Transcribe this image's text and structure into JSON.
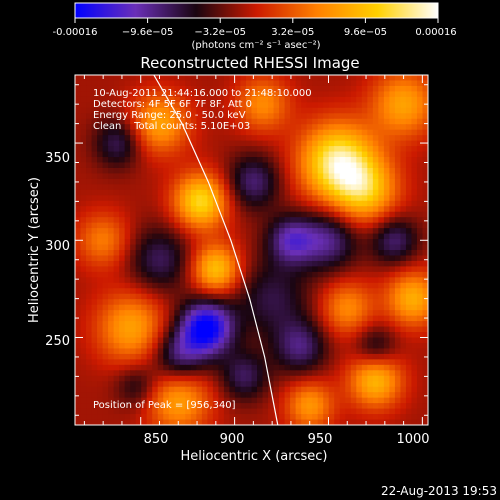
{
  "chart_data": {
    "type": "heatmap",
    "title": "Reconstructed RHESSI Image",
    "xlabel": "Heliocentric X (arcsec)",
    "ylabel": "Heliocentric Y (arcsec)",
    "xlim": [
      815,
      1003
    ],
    "ylim": [
      205,
      385
    ],
    "x_ticks": [
      850,
      900,
      950,
      1000
    ],
    "y_ticks": [
      250,
      300,
      350
    ],
    "colorbar": {
      "range": [
        -0.00016,
        0.00016
      ],
      "tick_values": [
        -0.00016,
        -9.6e-05,
        -3.2e-05,
        3.2e-05,
        9.6e-05,
        0.00016
      ],
      "tick_labels": [
        "-0.00016",
        "−9.6e−05",
        "−3.2e−05",
        "3.2e−05",
        "9.6e−05",
        "0.00016"
      ],
      "units": "(photons cm⁻² s⁻¹ asec⁻²)",
      "colors": [
        "#0000ff",
        "#6a2fb8",
        "#1a0510",
        "#cc1a00",
        "#ff8000",
        "#ffd000",
        "#ffffff"
      ]
    },
    "annotations": [
      "10-Aug-2011 21:44:16.000 to 21:48:10.000",
      "Detectors: 4F 5F 6F 7F 8F, Att 0",
      "Energy Range: 25.0 - 50.0 keV",
      "Clean    Total counts: 5.10E+03"
    ],
    "peak_label": "Position of Peak = [956,340]",
    "peak": [
      956,
      340
    ],
    "limb": [
      [
        857,
        385
      ],
      [
        872,
        360
      ],
      [
        886,
        330
      ],
      [
        898,
        300
      ],
      [
        908,
        270
      ],
      [
        916,
        240
      ],
      [
        923,
        205
      ]
    ],
    "blobs": [
      [
        955,
        340,
        14,
        0.95
      ],
      [
        970,
        325,
        12,
        0.6
      ],
      [
        882,
        320,
        10,
        0.8
      ],
      [
        890,
        285,
        9,
        0.7
      ],
      [
        995,
        270,
        10,
        0.6
      ],
      [
        975,
        228,
        10,
        0.65
      ],
      [
        860,
        360,
        11,
        0.55
      ],
      [
        915,
        370,
        10,
        0.45
      ],
      [
        845,
        255,
        13,
        0.55
      ],
      [
        830,
        300,
        10,
        0.4
      ],
      [
        990,
        370,
        12,
        0.55
      ],
      [
        940,
        215,
        9,
        0.5
      ],
      [
        870,
        218,
        12,
        0.55
      ],
      [
        960,
        265,
        10,
        0.45
      ],
      [
        930,
        300,
        9,
        -0.55
      ],
      [
        885,
        255,
        10,
        -0.95
      ],
      [
        860,
        290,
        12,
        -0.4
      ],
      [
        910,
        330,
        10,
        -0.45
      ],
      [
        950,
        300,
        11,
        -0.5
      ],
      [
        870,
        240,
        10,
        -0.5
      ],
      [
        935,
        245,
        10,
        -0.45
      ],
      [
        838,
        350,
        9,
        -0.4
      ],
      [
        985,
        300,
        9,
        -0.45
      ],
      [
        920,
        270,
        14,
        -0.35
      ],
      [
        905,
        230,
        9,
        -0.4
      ],
      [
        975,
        245,
        8,
        -0.35
      ],
      [
        848,
        225,
        8,
        -0.3
      ]
    ]
  },
  "footer": {
    "date": "22-Aug-2013 19:53"
  }
}
